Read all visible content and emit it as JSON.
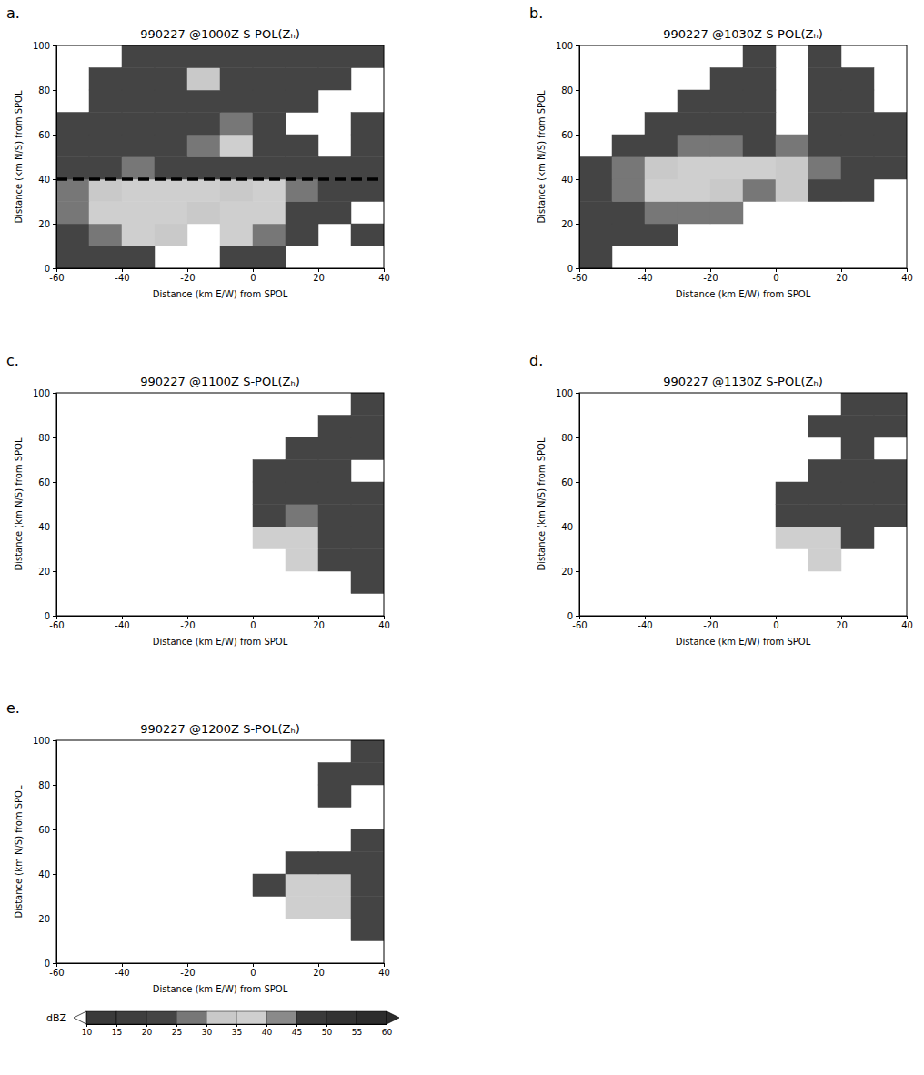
{
  "chart_data": [
    {
      "type": "heatmap",
      "panel": "a.",
      "title": "990227 @1000Z S-POL(Zₕ)",
      "x_label": "Distance (km E/W) from SPOL",
      "y_label": "Distance (km N/S) from SPOL",
      "xlim": [
        -60,
        40
      ],
      "ylim": [
        0,
        100
      ],
      "xticks": [
        -60,
        -40,
        -20,
        0,
        20,
        40
      ],
      "yticks": [
        0,
        20,
        40,
        60,
        80,
        100
      ],
      "x": [
        -55,
        -45,
        -35,
        -25,
        -15,
        -5,
        5,
        15,
        25,
        35
      ],
      "y": [
        5,
        15,
        25,
        35,
        45,
        55,
        65,
        75,
        85,
        95
      ],
      "cells": [
        [
          20,
          22,
          20,
          null,
          null,
          20,
          22,
          null,
          null,
          null
        ],
        [
          22,
          27,
          35,
          30,
          null,
          35,
          27,
          20,
          null,
          20
        ],
        [
          27,
          35,
          35,
          35,
          30,
          35,
          35,
          20,
          20,
          null
        ],
        [
          27,
          30,
          35,
          35,
          35,
          30,
          35,
          27,
          20,
          20
        ],
        [
          20,
          22,
          27,
          22,
          20,
          22,
          20,
          20,
          20,
          22
        ],
        [
          20,
          20,
          22,
          20,
          27,
          35,
          20,
          20,
          null,
          20
        ],
        [
          20,
          20,
          20,
          20,
          22,
          27,
          22,
          null,
          null,
          22
        ],
        [
          null,
          20,
          22,
          20,
          20,
          20,
          22,
          20,
          null,
          null
        ],
        [
          null,
          20,
          20,
          22,
          30,
          20,
          20,
          20,
          20,
          null
        ],
        [
          null,
          null,
          20,
          20,
          20,
          22,
          20,
          20,
          20,
          20
        ]
      ],
      "reference_line": {
        "y": 40,
        "line_style": "dashed"
      }
    },
    {
      "type": "heatmap",
      "panel": "b.",
      "title": "990227 @1030Z S-POL(Zₕ)",
      "x_label": "Distance (km E/W) from SPOL",
      "y_label": "Distance (km N/S) from SPOL",
      "xlim": [
        -60,
        40
      ],
      "ylim": [
        0,
        100
      ],
      "xticks": [
        -60,
        -40,
        -20,
        0,
        20,
        40
      ],
      "yticks": [
        0,
        20,
        40,
        60,
        80,
        100
      ],
      "x": [
        -55,
        -45,
        -35,
        -25,
        -15,
        -5,
        5,
        15,
        25,
        35
      ],
      "y": [
        5,
        15,
        25,
        35,
        45,
        55,
        65,
        75,
        85,
        95
      ],
      "cells": [
        [
          20,
          null,
          null,
          null,
          null,
          null,
          null,
          null,
          null,
          null
        ],
        [
          20,
          20,
          20,
          null,
          null,
          null,
          null,
          null,
          null,
          null
        ],
        [
          20,
          22,
          27,
          27,
          27,
          null,
          null,
          null,
          null,
          null
        ],
        [
          20,
          27,
          35,
          35,
          30,
          27,
          30,
          20,
          20,
          null
        ],
        [
          20,
          27,
          30,
          35,
          35,
          35,
          30,
          27,
          20,
          20
        ],
        [
          null,
          20,
          20,
          27,
          27,
          22,
          27,
          20,
          20,
          20
        ],
        [
          null,
          null,
          20,
          22,
          20,
          20,
          null,
          20,
          20,
          20
        ],
        [
          null,
          null,
          null,
          20,
          20,
          20,
          null,
          20,
          20,
          null
        ],
        [
          null,
          null,
          null,
          null,
          20,
          20,
          null,
          20,
          20,
          null
        ],
        [
          null,
          null,
          null,
          null,
          null,
          20,
          null,
          20,
          null,
          null
        ]
      ]
    },
    {
      "type": "heatmap",
      "panel": "c.",
      "title": "990227 @1100Z S-POL(Zₕ)",
      "x_label": "Distance (km E/W) from SPOL",
      "y_label": "Distance (km N/S) from SPOL",
      "xlim": [
        -60,
        40
      ],
      "ylim": [
        0,
        100
      ],
      "xticks": [
        -60,
        -40,
        -20,
        0,
        20,
        40
      ],
      "yticks": [
        0,
        20,
        40,
        60,
        80,
        100
      ],
      "x": [
        -55,
        -45,
        -35,
        -25,
        -15,
        -5,
        5,
        15,
        25,
        35
      ],
      "y": [
        5,
        15,
        25,
        35,
        45,
        55,
        65,
        75,
        85,
        95
      ],
      "cells": [
        [
          null,
          null,
          null,
          null,
          null,
          null,
          null,
          null,
          null,
          null
        ],
        [
          null,
          null,
          null,
          null,
          null,
          null,
          null,
          null,
          null,
          20
        ],
        [
          null,
          null,
          null,
          null,
          null,
          null,
          null,
          35,
          20,
          20
        ],
        [
          null,
          null,
          null,
          null,
          null,
          null,
          35,
          35,
          22,
          20
        ],
        [
          null,
          null,
          null,
          null,
          null,
          null,
          20,
          27,
          22,
          20
        ],
        [
          null,
          null,
          null,
          null,
          null,
          null,
          20,
          22,
          20,
          20
        ],
        [
          null,
          null,
          null,
          null,
          null,
          null,
          20,
          20,
          20,
          null
        ],
        [
          null,
          null,
          null,
          null,
          null,
          null,
          null,
          20,
          20,
          20
        ],
        [
          null,
          null,
          null,
          null,
          null,
          null,
          null,
          null,
          20,
          20
        ],
        [
          null,
          null,
          null,
          null,
          null,
          null,
          null,
          null,
          null,
          20
        ]
      ]
    },
    {
      "type": "heatmap",
      "panel": "d.",
      "title": "990227 @1130Z S-POL(Zₕ)",
      "x_label": "Distance (km E/W) from SPOL",
      "y_label": "Distance (km N/S) from SPOL",
      "xlim": [
        -60,
        40
      ],
      "ylim": [
        0,
        100
      ],
      "xticks": [
        -60,
        -40,
        -20,
        0,
        20,
        40
      ],
      "yticks": [
        0,
        20,
        40,
        60,
        80,
        100
      ],
      "x": [
        -55,
        -45,
        -35,
        -25,
        -15,
        -5,
        5,
        15,
        25,
        35
      ],
      "y": [
        5,
        15,
        25,
        35,
        45,
        55,
        65,
        75,
        85,
        95
      ],
      "cells": [
        [
          null,
          null,
          null,
          null,
          null,
          null,
          null,
          null,
          null,
          null
        ],
        [
          null,
          null,
          null,
          null,
          null,
          null,
          null,
          null,
          null,
          null
        ],
        [
          null,
          null,
          null,
          null,
          null,
          null,
          null,
          35,
          null,
          null
        ],
        [
          null,
          null,
          null,
          null,
          null,
          null,
          35,
          35,
          20,
          null
        ],
        [
          null,
          null,
          null,
          null,
          null,
          null,
          20,
          22,
          20,
          20
        ],
        [
          null,
          null,
          null,
          null,
          null,
          null,
          20,
          20,
          20,
          20
        ],
        [
          null,
          null,
          null,
          null,
          null,
          null,
          null,
          20,
          20,
          20
        ],
        [
          null,
          null,
          null,
          null,
          null,
          null,
          null,
          null,
          20,
          null
        ],
        [
          null,
          null,
          null,
          null,
          null,
          null,
          null,
          20,
          20,
          20
        ],
        [
          null,
          null,
          null,
          null,
          null,
          null,
          null,
          null,
          20,
          20
        ]
      ]
    },
    {
      "type": "heatmap",
      "panel": "e.",
      "title": "990227 @1200Z S-POL(Zₕ)",
      "x_label": "Distance (km E/W) from SPOL",
      "y_label": "Distance (km N/S) from SPOL",
      "xlim": [
        -60,
        40
      ],
      "ylim": [
        0,
        100
      ],
      "xticks": [
        -60,
        -40,
        -20,
        0,
        20,
        40
      ],
      "yticks": [
        0,
        20,
        40,
        60,
        80,
        100
      ],
      "x": [
        -55,
        -45,
        -35,
        -25,
        -15,
        -5,
        5,
        15,
        25,
        35
      ],
      "y": [
        5,
        15,
        25,
        35,
        45,
        55,
        65,
        75,
        85,
        95
      ],
      "cells": [
        [
          null,
          null,
          null,
          null,
          null,
          null,
          null,
          null,
          null,
          null
        ],
        [
          null,
          null,
          null,
          null,
          null,
          null,
          null,
          null,
          null,
          20
        ],
        [
          null,
          null,
          null,
          null,
          null,
          null,
          null,
          35,
          35,
          20
        ],
        [
          null,
          null,
          null,
          null,
          null,
          null,
          20,
          35,
          35,
          22
        ],
        [
          null,
          null,
          null,
          null,
          null,
          null,
          null,
          20,
          20,
          20
        ],
        [
          null,
          null,
          null,
          null,
          null,
          null,
          null,
          null,
          null,
          20
        ],
        [
          null,
          null,
          null,
          null,
          null,
          null,
          null,
          null,
          null,
          null
        ],
        [
          null,
          null,
          null,
          null,
          null,
          null,
          null,
          null,
          20,
          null
        ],
        [
          null,
          null,
          null,
          null,
          null,
          null,
          null,
          null,
          20,
          20
        ],
        [
          null,
          null,
          null,
          null,
          null,
          null,
          null,
          null,
          null,
          20
        ]
      ]
    }
  ],
  "colorbar": {
    "label": "dBZ",
    "range": [
      10,
      60
    ],
    "ticks": [
      10,
      15,
      20,
      25,
      30,
      35,
      40,
      45,
      50,
      55,
      60
    ],
    "colors": [
      "#3a3a3a",
      "#3e3e3e",
      "#444444",
      "#777777",
      "#c9c9c9",
      "#cfcfcf",
      "#8a8a8a",
      "#3a3a3a",
      "#333333",
      "#2c2c2c"
    ]
  }
}
